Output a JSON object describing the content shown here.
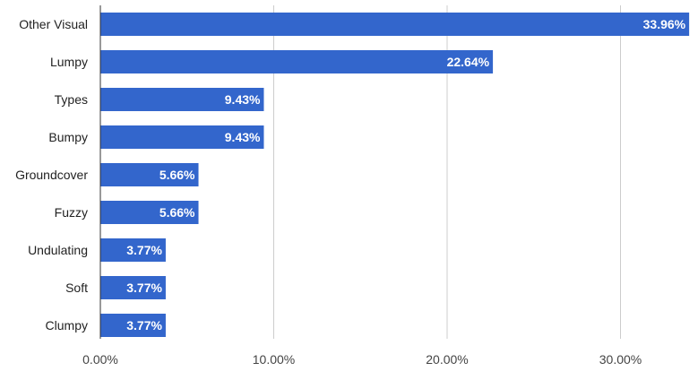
{
  "chart_data": {
    "type": "bar",
    "orientation": "horizontal",
    "categories": [
      "Other Visual",
      "Lumpy",
      "Types",
      "Bumpy",
      "Groundcover",
      "Fuzzy",
      "Undulating",
      "Soft",
      "Clumpy"
    ],
    "values": [
      33.96,
      22.64,
      9.43,
      9.43,
      5.66,
      5.66,
      3.77,
      3.77,
      3.77
    ],
    "data_labels": [
      "33.96%",
      "22.64%",
      "9.43%",
      "9.43%",
      "5.66%",
      "5.66%",
      "3.77%",
      "3.77%",
      "3.77%"
    ],
    "x_ticks": [
      0,
      10,
      20,
      30
    ],
    "x_tick_labels": [
      "0.00%",
      "10.00%",
      "20.00%",
      "30.00%"
    ],
    "xlim": [
      0,
      34
    ],
    "grid": true,
    "legend": "none",
    "colors": {
      "bar": "#3366cc",
      "grid": "#cccccc",
      "axis": "#333333",
      "label_text": "#222222",
      "data_label_text": "#ffffff"
    }
  }
}
